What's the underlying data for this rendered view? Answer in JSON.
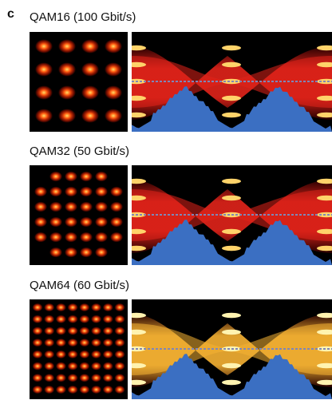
{
  "panel": {
    "letter": "c"
  },
  "rows": [
    {
      "title": "QAM16 (100 Gbit/s)",
      "grid": 4,
      "eye_style": "red"
    },
    {
      "title": "QAM32 (50 Gbit/s)",
      "grid": 6,
      "eye_style": "red"
    },
    {
      "title": "QAM64 (60 Gbit/s)",
      "grid": 8,
      "eye_style": "yellow"
    }
  ],
  "colors": {
    "background": "#ffffff",
    "plot_background": "#000000",
    "spot_core": "#ffe066",
    "spot_glow": "#d81a00",
    "eye_red": "#e2231a",
    "eye_yellow": "#f6b233",
    "histogram": "#3b6fc2",
    "dashed_line": "#7f86b8"
  }
}
